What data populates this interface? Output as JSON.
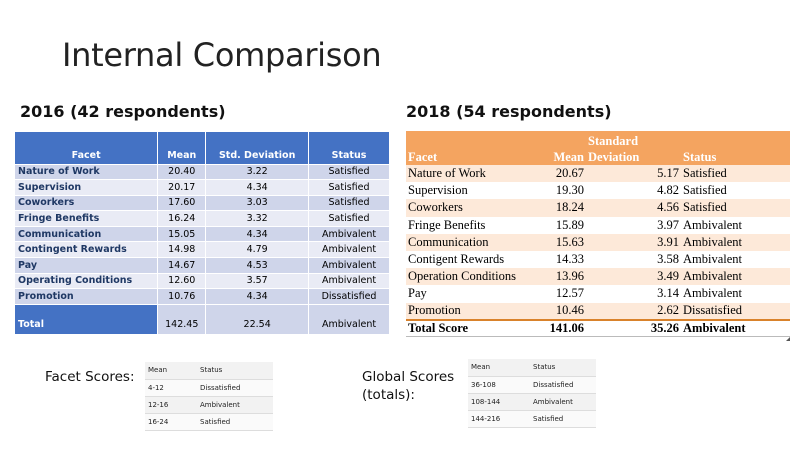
{
  "title": "Internal Comparison",
  "t2016": {
    "heading": "2016 (42 respondents)",
    "headers": [
      "Facet",
      "Mean",
      "Std. Deviation",
      "Status"
    ],
    "rows": [
      [
        "Nature of Work",
        "20.40",
        "3.22",
        "Satisfied"
      ],
      [
        "Supervision",
        "20.17",
        "4.34",
        "Satisfied"
      ],
      [
        "Coworkers",
        "17.60",
        "3.03",
        "Satisfied"
      ],
      [
        "Fringe Benefits",
        "16.24",
        "3.32",
        "Satisfied"
      ],
      [
        "Communication",
        "15.05",
        "4.34",
        "Ambivalent"
      ],
      [
        "Contingent Rewards",
        "14.98",
        "4.79",
        "Ambivalent"
      ],
      [
        "Pay",
        "14.67",
        "4.53",
        "Ambivalent"
      ],
      [
        "Operating Conditions",
        "12.60",
        "3.57",
        "Ambivalent"
      ],
      [
        "Promotion",
        "10.76",
        "4.34",
        "Dissatisfied"
      ]
    ],
    "total": [
      "Total",
      "142.45",
      "22.54",
      "Ambivalent"
    ]
  },
  "t2018": {
    "heading": "2018 (54 respondents)",
    "header_top": [
      "",
      "",
      "Standard",
      ""
    ],
    "headers": [
      "Facet",
      "Mean",
      "Deviation",
      "Status"
    ],
    "rows": [
      [
        "Nature of Work",
        "20.67",
        "5.17",
        "Satisfied"
      ],
      [
        "Supervision",
        "19.30",
        "4.82",
        "Satisfied"
      ],
      [
        "Coworkers",
        "18.24",
        "4.56",
        "Satisfied"
      ],
      [
        "Fringe Benefits",
        "15.89",
        "3.97",
        "Ambivalent"
      ],
      [
        "Communication",
        "15.63",
        "3.91",
        "Ambivalent"
      ],
      [
        "Contigent Rewards",
        "14.33",
        "3.58",
        "Ambivalent"
      ],
      [
        "Operation Conditions",
        "13.96",
        "3.49",
        "Ambivalent"
      ],
      [
        "Pay",
        "12.57",
        "3.14",
        "Ambivalent"
      ],
      [
        "Promotion",
        "10.46",
        "2.62",
        "Dissatisfied"
      ]
    ],
    "total": [
      "Total Score",
      "141.06",
      "35.26",
      "Ambivalent"
    ]
  },
  "facet_scores": {
    "label": "Facet Scores:",
    "headers": [
      "Mean",
      "Status"
    ],
    "rows": [
      [
        "4-12",
        "Dissatisfied"
      ],
      [
        "12-16",
        "Ambivalent"
      ],
      [
        "16-24",
        "Satisfied"
      ]
    ]
  },
  "global_scores": {
    "label_line1": "Global Scores",
    "label_line2": "(totals):",
    "headers": [
      "Mean",
      "Status"
    ],
    "rows": [
      [
        "36-108",
        "Dissatisfied"
      ],
      [
        "108-144",
        "Ambivalent"
      ],
      [
        "144-216",
        "Satisfied"
      ]
    ]
  }
}
